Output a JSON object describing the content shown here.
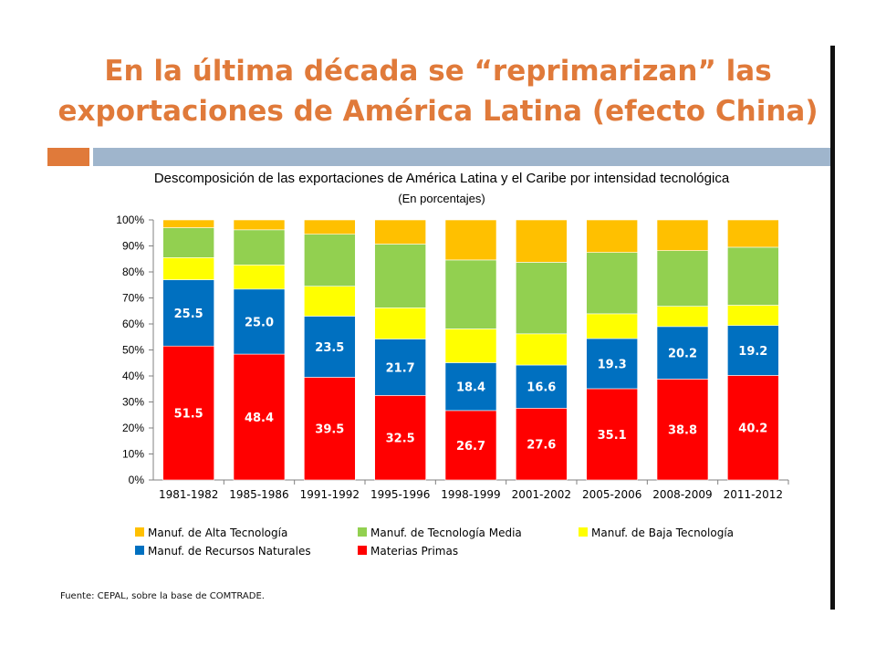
{
  "slide": {
    "title_line1": "En la última década se “reprimarizan” las",
    "title_line2": "exportaciones de América Latina (efecto China)",
    "source": "Fuente: CEPAL, sobre la base de COMTRADE."
  },
  "colors": {
    "title": "#e07a3a",
    "accent_block": "#e07a3a",
    "header_bar": "#9fb5cc"
  },
  "chart_data": {
    "type": "bar",
    "stacked": true,
    "title": "Descomposición de las exportaciones de América Latina y el Caribe por intensidad tecnológica",
    "subtitle": "(En porcentajes)",
    "xlabel": "",
    "ylabel": "",
    "ylim": [
      0,
      100
    ],
    "yticks": [
      "0%",
      "10%",
      "20%",
      "30%",
      "40%",
      "50%",
      "60%",
      "70%",
      "80%",
      "90%",
      "100%"
    ],
    "grid": false,
    "legend_position": "bottom",
    "categories": [
      "1981-1982",
      "1985-1986",
      "1991-1992",
      "1995-1996",
      "1998-1999",
      "2001-2002",
      "2005-2006",
      "2008-2009",
      "2011-2012"
    ],
    "series": [
      {
        "name": "Materias Primas",
        "color": "#ff0000",
        "values": [
          51.5,
          48.4,
          39.5,
          32.5,
          26.7,
          27.6,
          35.1,
          38.8,
          40.2
        ],
        "labels": [
          "51.5",
          "48.4",
          "39.5",
          "32.5",
          "26.7",
          "27.6",
          "35.1",
          "38.8",
          "40.2"
        ]
      },
      {
        "name": "Manuf. de Recursos Naturales",
        "color": "#0070c0",
        "values": [
          25.5,
          25.0,
          23.5,
          21.7,
          18.4,
          16.6,
          19.3,
          20.2,
          19.2
        ],
        "labels": [
          "25.5",
          "25.0",
          "23.5",
          "21.7",
          "18.4",
          "16.6",
          "19.3",
          "20.2",
          "19.2"
        ]
      },
      {
        "name": "Manuf. de Baja Tecnología",
        "color": "#ffff00",
        "values": [
          8.5,
          9.3,
          11.5,
          12.0,
          13.0,
          12.0,
          9.5,
          7.8,
          7.8
        ]
      },
      {
        "name": "Manuf. de Tecnología Media",
        "color": "#92d050",
        "values": [
          11.5,
          13.5,
          20.0,
          24.5,
          26.5,
          27.5,
          23.6,
          21.4,
          22.3
        ]
      },
      {
        "name": "Manuf. de Alta Tecnología",
        "color": "#ffc000",
        "values": [
          3.0,
          3.8,
          5.5,
          9.3,
          15.4,
          16.3,
          12.5,
          11.8,
          10.5
        ]
      }
    ],
    "legend": [
      "Manuf. de Alta Tecnología",
      "Manuf. de Tecnología Media",
      "Manuf. de Baja Tecnología",
      "Manuf. de Recursos Naturales",
      "Materias Primas"
    ]
  }
}
